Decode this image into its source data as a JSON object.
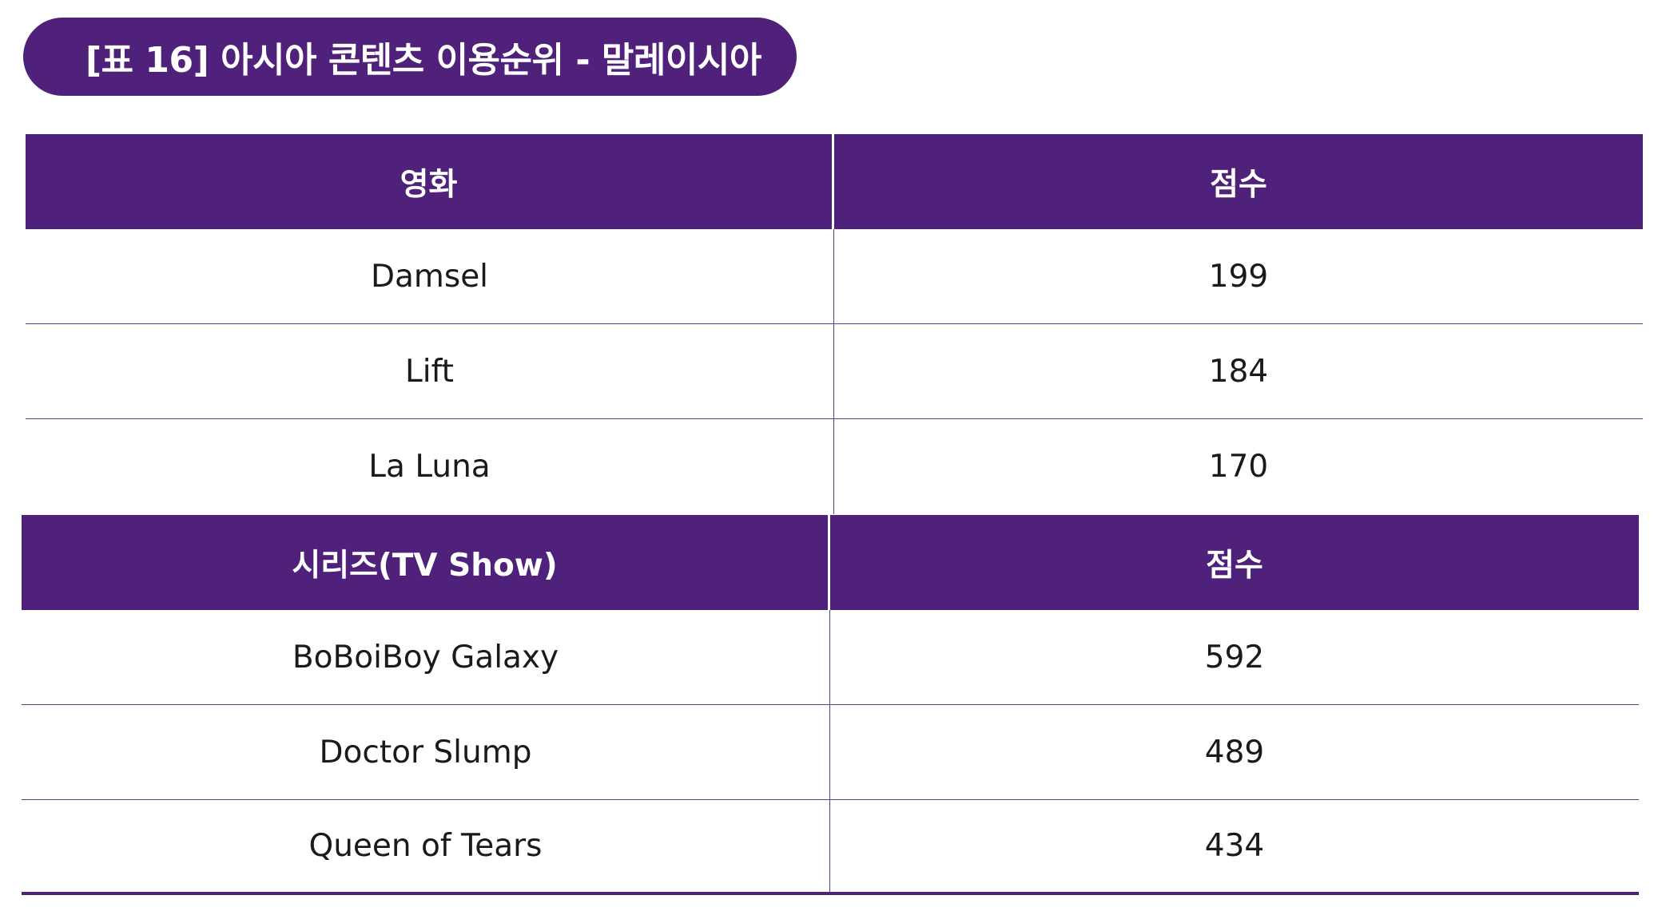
{
  "title": "[표 16] 아시아 콘텐츠 이용순위 - 말레이시아",
  "movies": {
    "header": {
      "name": "영화",
      "score": "점수"
    },
    "rows": [
      {
        "name": "Damsel",
        "score": "199"
      },
      {
        "name": "Lift",
        "score": "184"
      },
      {
        "name": "La Luna",
        "score": "170"
      }
    ]
  },
  "series": {
    "header": {
      "name": "시리즈(TV Show)",
      "score": "점수"
    },
    "rows": [
      {
        "name": "BoBoiBoy Galaxy",
        "score": "592"
      },
      {
        "name": "Doctor Slump",
        "score": "489"
      },
      {
        "name": "Queen of Tears",
        "score": "434"
      }
    ]
  },
  "colors": {
    "accent": "#4f217a",
    "rule": "#5b3d98"
  }
}
